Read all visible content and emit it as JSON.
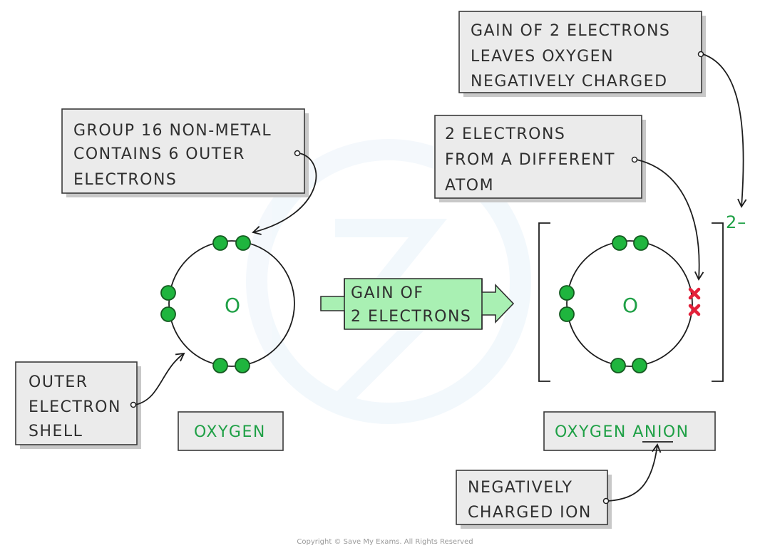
{
  "callouts": {
    "group16": [
      "GROUP 16 NON-METAL",
      "CONTAINS 6 OUTER",
      "ELECTRONS"
    ],
    "outer_shell": [
      "OUTER",
      "ELECTRON",
      "SHELL"
    ],
    "gain_leaves": [
      "GAIN OF 2 ELECTRONS",
      "LEAVES OXYGEN",
      "NEGATIVELY CHARGED"
    ],
    "two_electrons": [
      "2 ELECTRONS",
      "FROM A DIFFERENT",
      "ATOM"
    ],
    "negatively_charged_ion": [
      "NEGATIVELY",
      "CHARGED ION"
    ]
  },
  "arrow": {
    "lines": [
      "GAIN OF",
      "2 ELECTRONS"
    ]
  },
  "atom": {
    "symbol": "O",
    "label": "OXYGEN"
  },
  "ion": {
    "symbol": "O",
    "label_prefix": "OXYGEN",
    "label_underlined": "ANI",
    "label_suffix": "ON",
    "charge": "2–"
  },
  "copyright": "Copyright © Save My Exams. All Rights Reserved",
  "colors": {
    "green": "#1fa046",
    "electron_fill": "#1fb53e",
    "box_fill": "#ebebeb",
    "arrow_fill": "#a9f0b3",
    "cross": "#e3213a"
  }
}
